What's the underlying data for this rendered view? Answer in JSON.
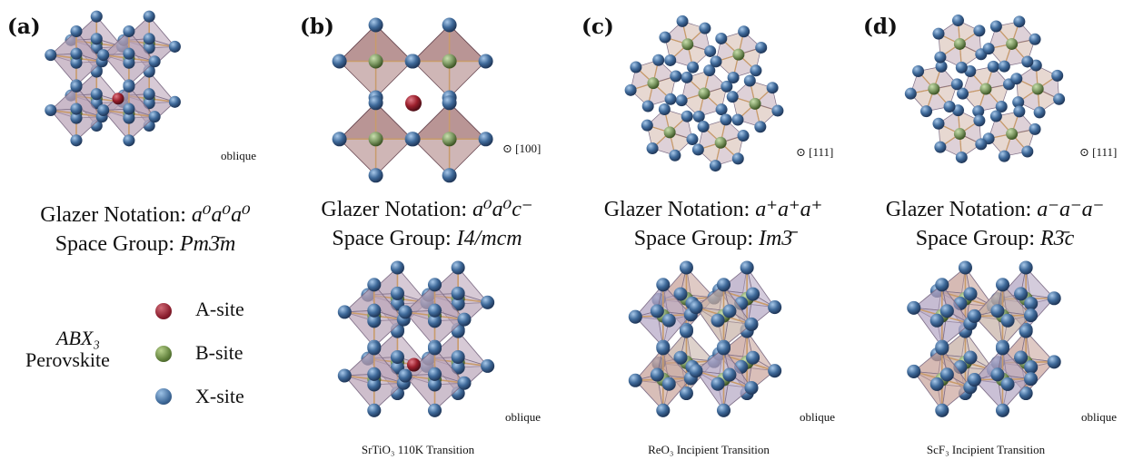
{
  "panels": [
    {
      "label": "(a)",
      "glazer_prefix": "Glazer Notation:",
      "glazer": "a⁰a⁰a⁰",
      "space_prefix": "Space Group:",
      "space": "Pm3̄m",
      "view": "oblique",
      "caption": ""
    },
    {
      "label": "(b)",
      "glazer_prefix": "Glazer Notation:",
      "glazer": "a⁰a⁰c⁻",
      "space_prefix": "Space Group:",
      "space": "I4/mcm",
      "view": "⊙ [100]",
      "lower_view": "oblique",
      "caption": "SrTiO₃ 110K Transition"
    },
    {
      "label": "(c)",
      "glazer_prefix": "Glazer Notation:",
      "glazer": "a⁺a⁺a⁺",
      "space_prefix": "Space Group:",
      "space": "Im3̄",
      "view": "⊙ [111]",
      "lower_view": "oblique",
      "caption": "ReO₃ Incipient Transition"
    },
    {
      "label": "(d)",
      "glazer_prefix": "Glazer Notation:",
      "glazer": "a⁻a⁻a⁻",
      "space_prefix": "Space Group:",
      "space": "R3̄c",
      "view": "⊙ [111]",
      "lower_view": "oblique",
      "caption": "ScF₃ Incipient Transition"
    }
  ],
  "legend": {
    "title_formula": "ABX₃",
    "title_name": "Perovskite",
    "items": [
      {
        "label": "A-site",
        "color": "#8b1e2e"
      },
      {
        "label": "B-site",
        "color": "#5f7f3a"
      },
      {
        "label": "X-site",
        "color": "#3f6a9a"
      }
    ]
  },
  "colors": {
    "octahedron_fill": "#b9a3b7",
    "octahedron_edge": "#7d6d86",
    "bond": "#c89b6b",
    "x_site": "#3f6a9a",
    "b_site": "#7e9a64",
    "a_site": "#9b1f2c"
  }
}
